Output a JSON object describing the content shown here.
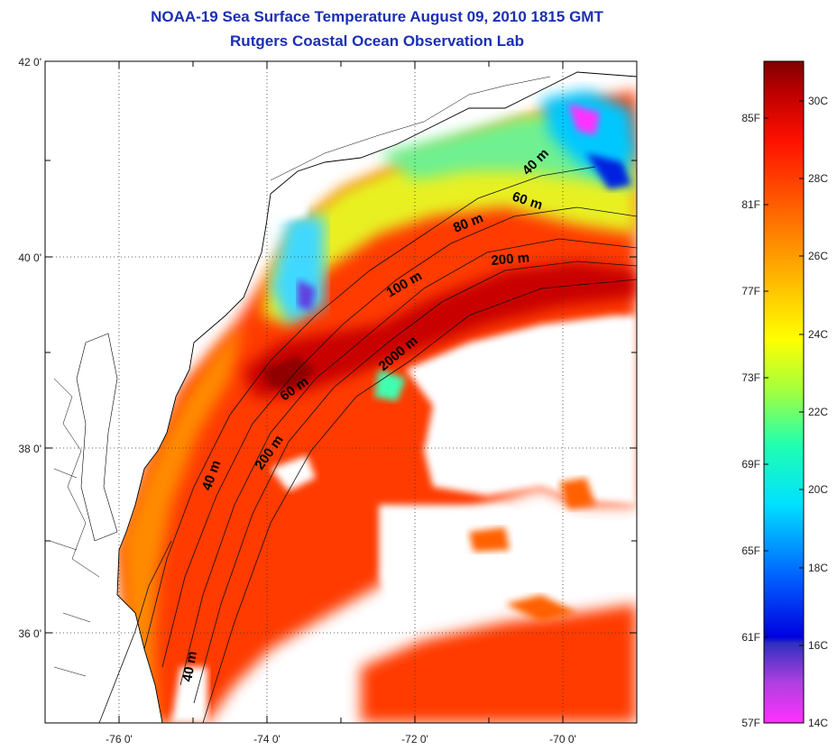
{
  "title": {
    "line1": "NOAA-19 Sea Surface Temperature August 09, 2010 1815 GMT",
    "line2": "Rutgers Coastal Ocean Observation Lab"
  },
  "map": {
    "lat_labels": [
      "42 0'",
      "40 0'",
      "38 0'",
      "36 0'"
    ],
    "lon_labels": [
      "-76 0'",
      "-74 0'",
      "-72 0'",
      "-70 0'"
    ],
    "isobaths": [
      "40 m",
      "60 m",
      "80 m",
      "100 m",
      "200 m",
      "2000 m",
      "60 m",
      "200 m",
      "40 m",
      "40 m"
    ]
  },
  "colorbar": {
    "fahrenheit": [
      "85F",
      "81F",
      "77F",
      "73F",
      "69F",
      "65F",
      "61F",
      "57F"
    ],
    "celsius": [
      "30C",
      "28C",
      "26C",
      "24C",
      "22C",
      "20C",
      "18C",
      "16C",
      "14C"
    ]
  },
  "colors": {
    "title": "#1a2fb4",
    "scale": [
      "#ff30ff",
      "#7a3fd0",
      "#0000e0",
      "#0060ff",
      "#00c8ff",
      "#00ffd0",
      "#40ff80",
      "#c0ff30",
      "#ffff00",
      "#ffc000",
      "#ff8000",
      "#ff4000",
      "#e00000",
      "#8a0000"
    ]
  }
}
